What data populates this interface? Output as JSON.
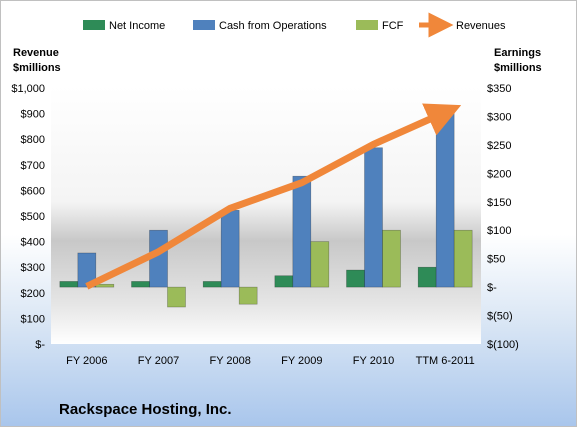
{
  "chart_data": {
    "type": "bar",
    "title": "Rackspace Hosting, Inc.",
    "categories": [
      "FY 2006",
      "FY 2007",
      "FY 2008",
      "FY 2009",
      "FY 2010",
      "TTM 6-2011"
    ],
    "y_left_label": [
      "Revenue",
      "$millions"
    ],
    "y_right_label": [
      "Earnings",
      "$millions"
    ],
    "y_left_ticks": [
      "$-",
      "$100",
      "$200",
      "$300",
      "$400",
      "$500",
      "$600",
      "$700",
      "$800",
      "$900",
      "$1,000"
    ],
    "y_right_ticks": [
      "$(100)",
      "$(50)",
      "$-",
      "$50",
      "$100",
      "$150",
      "$200",
      "$250",
      "$300",
      "$350"
    ],
    "y_left_range": [
      0,
      1000
    ],
    "y_right_range": [
      -100,
      350
    ],
    "bar_series": [
      {
        "name": "Net Income",
        "color": "#2e8b57",
        "values": [
          10,
          10,
          10,
          20,
          30,
          35
        ]
      },
      {
        "name": "Cash from Operations",
        "color": "#4f81bd",
        "values": [
          60,
          100,
          135,
          195,
          245,
          310
        ]
      },
      {
        "name": "FCF",
        "color": "#9bbb59",
        "values": [
          5,
          -35,
          -30,
          80,
          100,
          100
        ]
      }
    ],
    "line_series": {
      "name": "Revenues",
      "color": "#f0873a",
      "axis": "left",
      "values": [
        225,
        360,
        530,
        630,
        780,
        905
      ]
    },
    "legend_position": "top",
    "grid": false
  }
}
